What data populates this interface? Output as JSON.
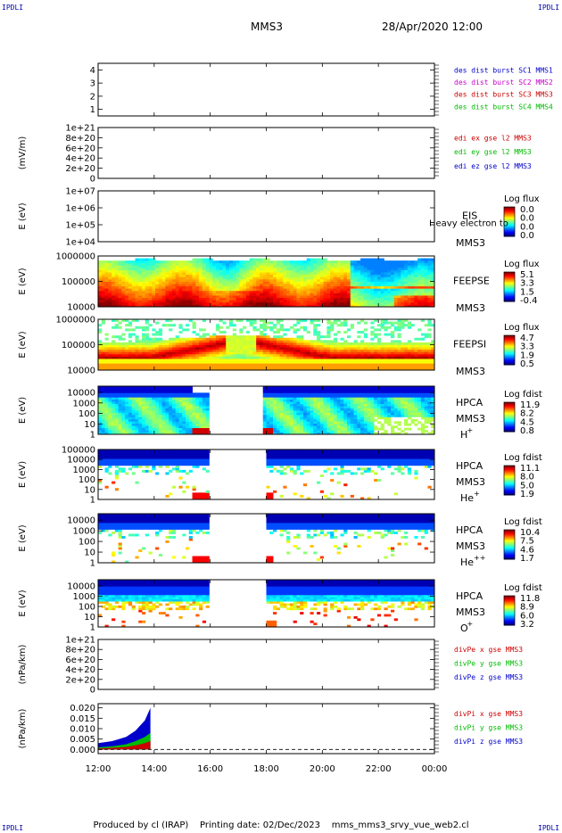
{
  "header": {
    "spacecraft": "MMS3",
    "datetime": "28/Apr/2020 12:00",
    "corner_label": "IPDLI"
  },
  "footer": {
    "produced_by": "Produced by cl (IRAP)",
    "printing_date": "Printing date: 02/Dec/2023",
    "filename": "mms_mms3_srvy_vue_web2.cl"
  },
  "colors": {
    "mms1": "#0000cc",
    "mms2": "#cc00cc",
    "mms3": "#cc0000",
    "mms4": "#00bb00",
    "x_component": "#cc0000",
    "y_component": "#00bb00",
    "z_component": "#0000cc"
  },
  "chart_data": [
    {
      "type": "line",
      "panel": "burst-availability",
      "yticks": [
        "1",
        "2",
        "3",
        "4"
      ],
      "ylim": [
        0.5,
        4.5
      ],
      "legend": [
        {
          "text": "des dist burst SC1 MMS1",
          "color": "#0000cc"
        },
        {
          "text": "des dist burst SC2 MMS2",
          "color": "#cc00cc"
        },
        {
          "text": "des dist burst SC3 MMS3",
          "color": "#cc0000"
        },
        {
          "text": "des dist burst SC4 MMS4",
          "color": "#00bb00"
        }
      ]
    },
    {
      "type": "line",
      "panel": "edi-electric-field",
      "ylabel": "(mV/m)",
      "yticks": [
        "0",
        "2e+20",
        "4e+20",
        "6e+20",
        "8e+20",
        "1e+21"
      ],
      "ylim": [
        0,
        1e+21
      ],
      "zero_line": true,
      "legend": [
        {
          "text": "edi ex gse l2 MMS3",
          "color": "#cc0000"
        },
        {
          "text": "edi ey gse l2 MMS3",
          "color": "#00bb00"
        },
        {
          "text": "edi ez gse l2 MMS3",
          "color": "#0000cc"
        }
      ]
    },
    {
      "type": "heatmap",
      "panel": "eis",
      "ylabel": "E (eV)",
      "yticks": [
        "1e+04",
        "1e+05",
        "1e+06",
        "1e+07"
      ],
      "ylim": [
        10000.0,
        10000000.0
      ],
      "instrument": "EIS",
      "overlay_text": "Heavy electron to",
      "spacecraft": "MMS3",
      "colorbar": {
        "title": "Log flux",
        "ticks": [
          "0.0",
          "0.0",
          "0.0",
          "0.0"
        ]
      },
      "pattern": "empty"
    },
    {
      "type": "heatmap",
      "panel": "feeps-electrons",
      "ylabel": "E (eV)",
      "yticks": [
        "10000",
        "100000",
        "1000000"
      ],
      "ylim": [
        10000,
        1000000
      ],
      "instrument": "FEEPSE",
      "spacecraft": "MMS3",
      "colorbar": {
        "title": "Log flux",
        "ticks": [
          "5.1",
          "3.3",
          "1.5",
          "-0.4"
        ]
      },
      "pattern": "feepse"
    },
    {
      "type": "heatmap",
      "panel": "feeps-ions",
      "ylabel": "E (eV)",
      "yticks": [
        "10000",
        "100000",
        "1000000"
      ],
      "ylim": [
        10000,
        1000000
      ],
      "instrument": "FEEPSI",
      "spacecraft": "MMS3",
      "colorbar": {
        "title": "Log flux",
        "ticks": [
          "4.7",
          "3.3",
          "1.9",
          "0.5"
        ]
      },
      "pattern": "feepsi"
    },
    {
      "type": "heatmap",
      "panel": "hpca-h",
      "ylabel": "E (eV)",
      "yticks": [
        "1",
        "10",
        "100",
        "1000",
        "10000"
      ],
      "ylim": [
        1,
        40000
      ],
      "instrument": "HPCA",
      "spacecraft": "MMS3",
      "species": "H",
      "species_sup": "+",
      "colorbar": {
        "title": "Log fdist",
        "ticks": [
          "11.9",
          "8.2",
          "4.5",
          "0.8"
        ]
      },
      "pattern": "hplus"
    },
    {
      "type": "heatmap",
      "panel": "hpca-he",
      "ylabel": "E (eV)",
      "yticks": [
        "1",
        "10",
        "100",
        "1000",
        "10000",
        "100000"
      ],
      "ylim": [
        1,
        100000
      ],
      "instrument": "HPCA",
      "spacecraft": "MMS3",
      "species": "He",
      "species_sup": "+",
      "colorbar": {
        "title": "Log fdist",
        "ticks": [
          "11.1",
          "8.0",
          "5.0",
          "1.9"
        ]
      },
      "pattern": "sparse"
    },
    {
      "type": "heatmap",
      "panel": "hpca-hepp",
      "ylabel": "E (eV)",
      "yticks": [
        "1",
        "10",
        "100",
        "1000",
        "10000"
      ],
      "ylim": [
        1,
        40000
      ],
      "instrument": "HPCA",
      "spacecraft": "MMS3",
      "species": "He",
      "species_sup": "++",
      "colorbar": {
        "title": "Log fdist",
        "ticks": [
          "10.4",
          "7.5",
          "4.6",
          "1.7"
        ]
      },
      "pattern": "sparse"
    },
    {
      "type": "heatmap",
      "panel": "hpca-o",
      "ylabel": "E (eV)",
      "yticks": [
        "1",
        "10",
        "100",
        "1000",
        "10000"
      ],
      "ylim": [
        1,
        40000
      ],
      "instrument": "HPCA",
      "spacecraft": "MMS3",
      "species": "O",
      "species_sup": "+",
      "colorbar": {
        "title": "Log fdist",
        "ticks": [
          "11.8",
          "8.9",
          "6.0",
          "3.2"
        ]
      },
      "pattern": "oxygen"
    },
    {
      "type": "line",
      "panel": "div-pe",
      "ylabel": "(nPa/km)",
      "yticks": [
        "0",
        "2e+20",
        "4e+20",
        "6e+20",
        "8e+20",
        "1e+21"
      ],
      "ylim": [
        0,
        1e+21
      ],
      "zero_line": true,
      "legend": [
        {
          "text": "divPe x gse MMS3",
          "color": "#cc0000"
        },
        {
          "text": "divPe y gse MMS3",
          "color": "#00bb00"
        },
        {
          "text": "divPe z gse MMS3",
          "color": "#0000cc"
        }
      ]
    },
    {
      "type": "area",
      "panel": "div-pi",
      "ylabel": "(nPa/km)",
      "yticks": [
        "0.000",
        "0.005",
        "0.010",
        "0.015",
        "0.020"
      ],
      "ylim": [
        -0.002,
        0.022
      ],
      "zero_line": true,
      "series_envelopes": {
        "x": [
          "12:00",
          "12:30",
          "13:00",
          "13:20",
          "13:40",
          "13:52"
        ],
        "z_component": [
          0.003,
          0.004,
          0.006,
          0.009,
          0.014,
          0.02
        ],
        "y_component": [
          0.001,
          0.0015,
          0.0025,
          0.004,
          0.006,
          0.008
        ],
        "x_component": [
          0.0005,
          0.0008,
          0.0012,
          0.002,
          0.003,
          0.004
        ]
      },
      "legend": [
        {
          "text": "divPi x gse MMS3",
          "color": "#cc0000"
        },
        {
          "text": "divPi y gse MMS3",
          "color": "#00bb00"
        },
        {
          "text": "divPi z gse MMS3",
          "color": "#0000cc"
        }
      ]
    }
  ],
  "time_axis": {
    "ticks": [
      "12:00",
      "14:00",
      "16:00",
      "18:00",
      "20:00",
      "22:00",
      "00:00"
    ],
    "range_hours": [
      12,
      24
    ]
  }
}
